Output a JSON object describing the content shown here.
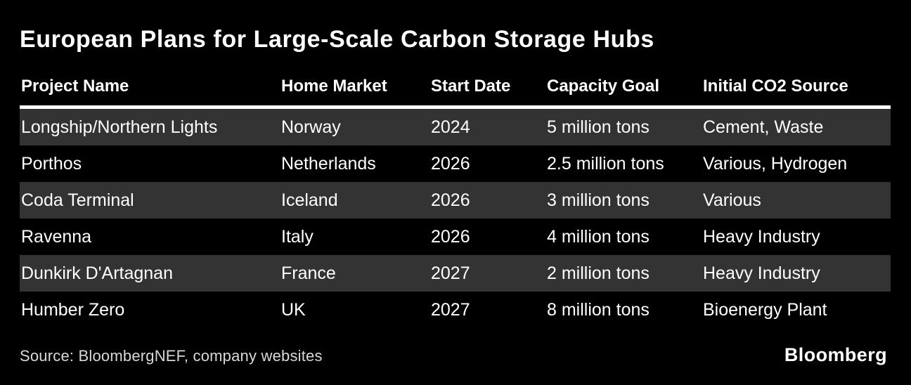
{
  "title": "European Plans for Large-Scale Carbon Storage Hubs",
  "chart_data": {
    "type": "table",
    "title": "European Plans for Large-Scale Carbon Storage Hubs",
    "columns": [
      "Project Name",
      "Home Market",
      "Start Date",
      "Capacity Goal",
      "Initial CO2 Source"
    ],
    "rows": [
      [
        "Longship/Northern Lights",
        "Norway",
        "2024",
        "5 million tons",
        "Cement, Waste"
      ],
      [
        "Porthos",
        "Netherlands",
        "2026",
        "2.5 million tons",
        "Various, Hydrogen"
      ],
      [
        "Coda Terminal",
        "Iceland",
        "2026",
        "3 million tons",
        "Various"
      ],
      [
        "Ravenna",
        "Italy",
        "2026",
        "4 million tons",
        "Heavy Industry"
      ],
      [
        "Dunkirk D'Artagnan",
        "France",
        "2027",
        "2 million tons",
        "Heavy Industry"
      ],
      [
        "Humber Zero",
        "UK",
        "2027",
        "8 million tons",
        "Bioenergy Plant"
      ]
    ],
    "layout": {
      "striped": true,
      "stripe_rows": "1st, 3rd, 5th",
      "header_divider": true,
      "gridlines": false
    }
  },
  "footer": {
    "source": "Source: BloombergNEF, company websites",
    "brand": "Bloomberg"
  },
  "colors": {
    "background": "#000000",
    "row_stripe": "#333333",
    "text": "#ffffff",
    "source_text": "#d8d8d8",
    "header_divider": "#ffffff"
  }
}
